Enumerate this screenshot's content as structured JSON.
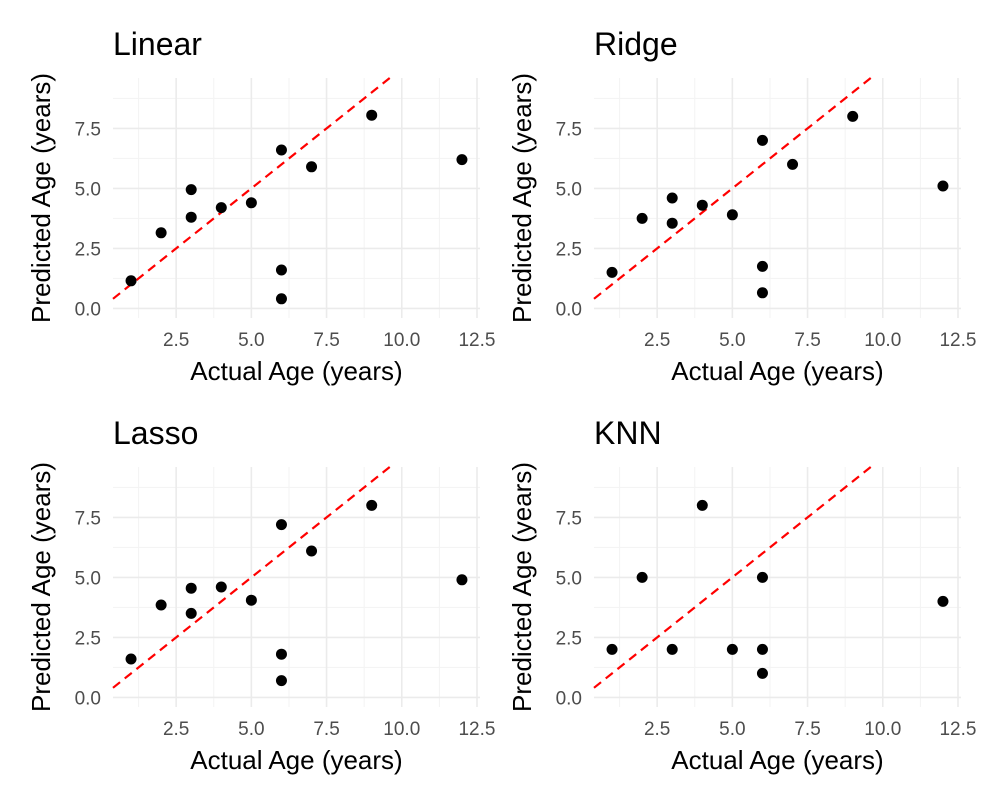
{
  "chart_data": [
    {
      "type": "scatter",
      "title": "Linear",
      "xlabel": "Actual Age (years)",
      "ylabel": "Predicted Age (years)",
      "xlim": [
        0.4,
        12.6
      ],
      "ylim": [
        -0.4,
        9.6
      ],
      "x_ticks": [
        "2.5",
        "5.0",
        "7.5",
        "10.0",
        "12.5"
      ],
      "y_ticks": [
        "0.0",
        "2.5",
        "5.0",
        "7.5"
      ],
      "reference_line": "y = x",
      "reference_line_color": "#ff0000",
      "point_color": "#000000",
      "grid": true,
      "points": [
        {
          "x": 1,
          "y": 1.15
        },
        {
          "x": 2,
          "y": 3.15
        },
        {
          "x": 3,
          "y": 4.95
        },
        {
          "x": 3,
          "y": 3.8
        },
        {
          "x": 4,
          "y": 4.2
        },
        {
          "x": 5,
          "y": 4.4
        },
        {
          "x": 6,
          "y": 6.6
        },
        {
          "x": 6,
          "y": 1.6
        },
        {
          "x": 6,
          "y": 0.4
        },
        {
          "x": 7,
          "y": 5.9
        },
        {
          "x": 9,
          "y": 8.05
        },
        {
          "x": 12,
          "y": 6.2
        }
      ]
    },
    {
      "type": "scatter",
      "title": "Ridge",
      "xlabel": "Actual Age (years)",
      "ylabel": "Predicted Age (years)",
      "xlim": [
        0.4,
        12.6
      ],
      "ylim": [
        -0.4,
        9.6
      ],
      "x_ticks": [
        "2.5",
        "5.0",
        "7.5",
        "10.0",
        "12.5"
      ],
      "y_ticks": [
        "0.0",
        "2.5",
        "5.0",
        "7.5"
      ],
      "reference_line": "y = x",
      "reference_line_color": "#ff0000",
      "point_color": "#000000",
      "grid": true,
      "points": [
        {
          "x": 1,
          "y": 1.5
        },
        {
          "x": 2,
          "y": 3.75
        },
        {
          "x": 3,
          "y": 4.6
        },
        {
          "x": 3,
          "y": 3.55
        },
        {
          "x": 4,
          "y": 4.3
        },
        {
          "x": 5,
          "y": 3.9
        },
        {
          "x": 6,
          "y": 7.0
        },
        {
          "x": 6,
          "y": 1.75
        },
        {
          "x": 6,
          "y": 0.65
        },
        {
          "x": 7,
          "y": 6.0
        },
        {
          "x": 9,
          "y": 8.0
        },
        {
          "x": 12,
          "y": 5.1
        }
      ]
    },
    {
      "type": "scatter",
      "title": "Lasso",
      "xlabel": "Actual Age (years)",
      "ylabel": "Predicted Age (years)",
      "xlim": [
        0.4,
        12.6
      ],
      "ylim": [
        -0.4,
        9.6
      ],
      "x_ticks": [
        "2.5",
        "5.0",
        "7.5",
        "10.0",
        "12.5"
      ],
      "y_ticks": [
        "0.0",
        "2.5",
        "5.0",
        "7.5"
      ],
      "reference_line": "y = x",
      "reference_line_color": "#ff0000",
      "point_color": "#000000",
      "grid": true,
      "points": [
        {
          "x": 1,
          "y": 1.6
        },
        {
          "x": 2,
          "y": 3.85
        },
        {
          "x": 3,
          "y": 4.55
        },
        {
          "x": 3,
          "y": 3.5
        },
        {
          "x": 4,
          "y": 4.6
        },
        {
          "x": 5,
          "y": 4.05
        },
        {
          "x": 6,
          "y": 7.2
        },
        {
          "x": 6,
          "y": 1.8
        },
        {
          "x": 6,
          "y": 0.7
        },
        {
          "x": 7,
          "y": 6.1
        },
        {
          "x": 9,
          "y": 8.0
        },
        {
          "x": 12,
          "y": 4.9
        }
      ]
    },
    {
      "type": "scatter",
      "title": "KNN",
      "xlabel": "Actual Age (years)",
      "ylabel": "Predicted Age (years)",
      "xlim": [
        0.4,
        12.6
      ],
      "ylim": [
        -0.4,
        9.6
      ],
      "x_ticks": [
        "2.5",
        "5.0",
        "7.5",
        "10.0",
        "12.5"
      ],
      "y_ticks": [
        "0.0",
        "2.5",
        "5.0",
        "7.5"
      ],
      "reference_line": "y = x",
      "reference_line_color": "#ff0000",
      "point_color": "#000000",
      "grid": true,
      "points": [
        {
          "x": 1,
          "y": 2
        },
        {
          "x": 2,
          "y": 5
        },
        {
          "x": 3,
          "y": 2
        },
        {
          "x": 4,
          "y": 8
        },
        {
          "x": 5,
          "y": 2
        },
        {
          "x": 6,
          "y": 5
        },
        {
          "x": 6,
          "y": 2
        },
        {
          "x": 6,
          "y": 1
        },
        {
          "x": 12,
          "y": 4
        }
      ]
    }
  ]
}
